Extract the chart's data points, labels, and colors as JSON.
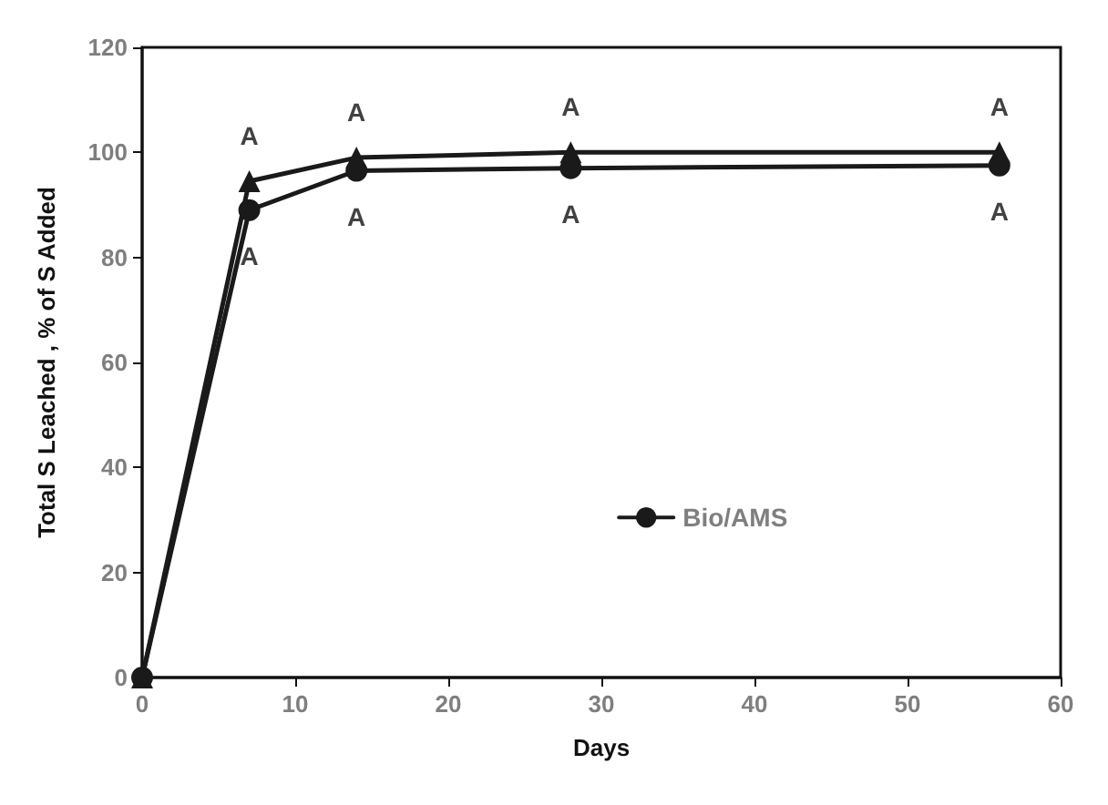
{
  "chart_data": {
    "type": "line",
    "xlabel": "Days",
    "ylabel": "Total S Leached , % of S Added",
    "x": [
      0,
      7,
      14,
      28,
      56
    ],
    "series": [
      {
        "name": "Bio/AMS",
        "color": "#1a1a1a",
        "marker": "circle",
        "values": [
          0,
          89,
          96.5,
          97,
          97.5
        ]
      },
      {
        "color": "#1a1a1a",
        "marker": "triangle",
        "values": [
          0,
          94.5,
          99,
          100,
          100
        ]
      }
    ],
    "xlim": [
      0,
      60
    ],
    "xticks": [
      0,
      10,
      20,
      30,
      40,
      50,
      60
    ],
    "ylim": [
      0,
      120
    ],
    "yticks": [
      0,
      20,
      40,
      60,
      80,
      100,
      120
    ],
    "grid": false,
    "legend": "center",
    "line_style": "solid",
    "annotations": [
      {
        "text": "A",
        "x": 7,
        "y": 94.5
      },
      {
        "text": "A",
        "x": 14,
        "y": 99
      },
      {
        "text": "A",
        "x": 28,
        "y": 100
      },
      {
        "text": "A",
        "x": 56,
        "y": 100
      },
      {
        "text": "A",
        "x": 7,
        "y": 89
      },
      {
        "text": "A",
        "x": 14,
        "y": 96.5
      },
      {
        "text": "A",
        "x": 28,
        "y": 97
      },
      {
        "text": "A",
        "x": 56,
        "y": 97.5
      }
    ]
  }
}
